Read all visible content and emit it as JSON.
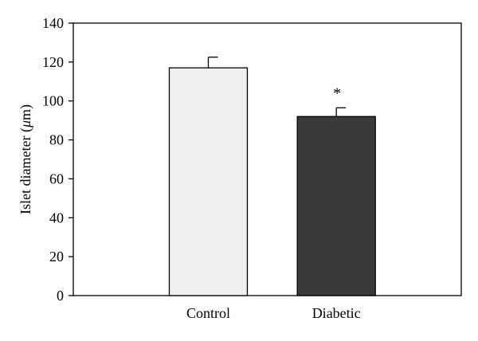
{
  "chart_data": {
    "type": "bar",
    "categories": [
      "Control",
      "Diabetic"
    ],
    "values": [
      117,
      92
    ],
    "errors": [
      5.5,
      4.5
    ],
    "bar_colors": [
      "#efefef",
      "#3a3a3a"
    ],
    "annotations": [
      "",
      "*"
    ],
    "ylabel_main": "Islet diameter (",
    "ylabel_unit_italic": "μ",
    "ylabel_tail": "m)",
    "yticks": [
      0,
      20,
      40,
      60,
      80,
      100,
      120,
      140
    ],
    "ylim": [
      0,
      140
    ],
    "grid": false
  }
}
